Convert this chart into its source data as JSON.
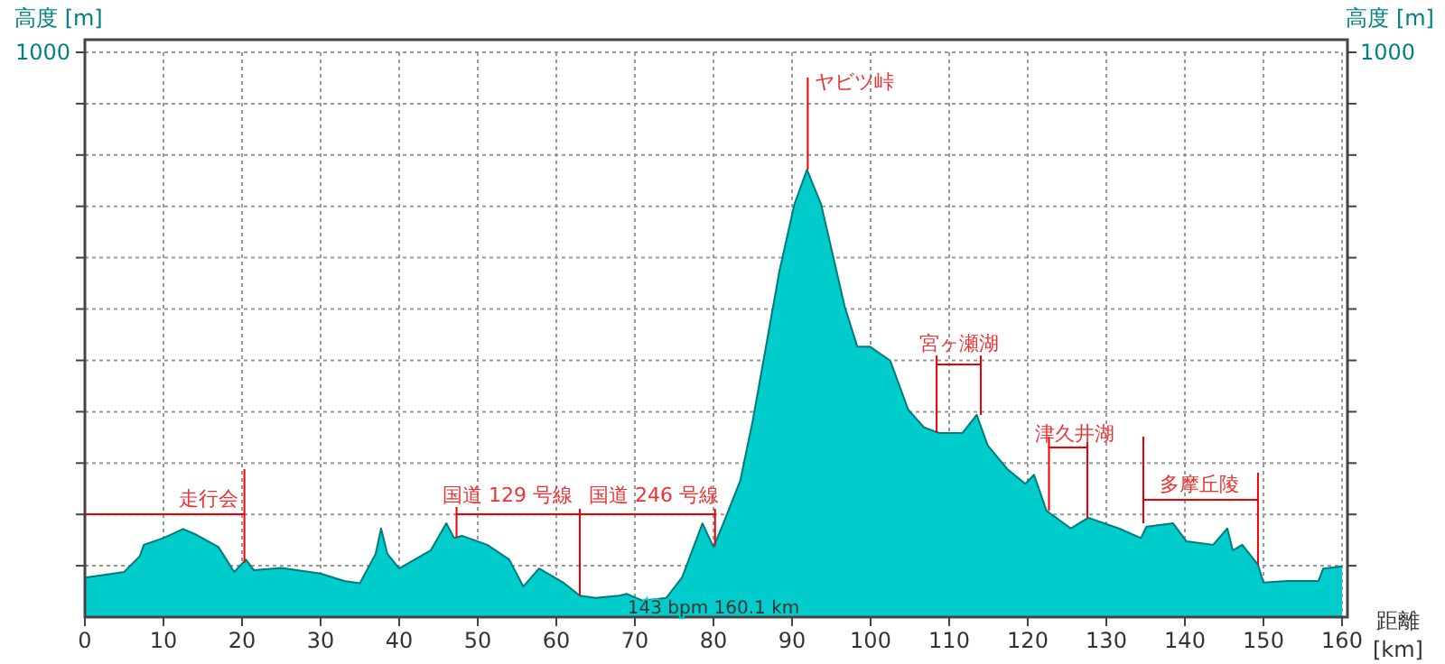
{
  "chart_data": {
    "type": "area",
    "ylabel": "高度 [m]",
    "y2label": "高度 [m]",
    "xlabel": "距離 [km]",
    "x": [
      0,
      5,
      7,
      7.5,
      10,
      12.5,
      14,
      17,
      19,
      19.5,
      20.5,
      21.5,
      25,
      30,
      33,
      35,
      37,
      37.7,
      38.5,
      40,
      44,
      46,
      47,
      48,
      51.2,
      54,
      55.8,
      57.8,
      61,
      63,
      65,
      68,
      69,
      71,
      74,
      76,
      78.6,
      80,
      81,
      83.4,
      85,
      88.4,
      90.3,
      91.9,
      93.7,
      96.7,
      98.3,
      99.9,
      102.5,
      104.8,
      106.8,
      108.7,
      111.7,
      113.5,
      114.9,
      117.4,
      119.7,
      120.8,
      122.4,
      125.5,
      127.7,
      131.6,
      134.4,
      135.1,
      138.5,
      140.2,
      143.6,
      145.4,
      146.1,
      147.3,
      149.3,
      150,
      153,
      157,
      157.6,
      160
    ],
    "series": [
      {
        "color": "#00cccc",
        "values": [
          70,
          80,
          108,
          128,
          140,
          156,
          147,
          124,
          80,
          87,
          102,
          83,
          87,
          77,
          64,
          60,
          112,
          157,
          112,
          86,
          118,
          166,
          140,
          144,
          128,
          102,
          54,
          86,
          60,
          38,
          34,
          38,
          41,
          29,
          34,
          70,
          166,
          124,
          157,
          241,
          348,
          613,
          731,
          792,
          731,
          550,
          479,
          479,
          454,
          367,
          336,
          326,
          326,
          358,
          304,
          262,
          236,
          252,
          188,
          157,
          176,
          157,
          140,
          160,
          166,
          134,
          128,
          157,
          118,
          128,
          93,
          61,
          64,
          64,
          86,
          90
        ]
      }
    ],
    "xlim": [
      0,
      160
    ],
    "xticks": [
      0,
      10,
      20,
      30,
      40,
      50,
      60,
      70,
      80,
      90,
      100,
      110,
      120,
      130,
      140,
      150,
      160
    ],
    "ylim": [
      0,
      1000
    ],
    "yticks": [
      {
        "value": 90.9,
        "label": null
      },
      {
        "value": 181.8,
        "label": null
      },
      {
        "value": 272.7,
        "label": null
      },
      {
        "value": 363.6,
        "label": null
      },
      {
        "value": 454.5,
        "label": null
      },
      {
        "value": 545.5,
        "label": null
      },
      {
        "value": 636.4,
        "label": null
      },
      {
        "value": 727.3,
        "label": null
      },
      {
        "value": 818.2,
        "label": null
      },
      {
        "value": 909.1,
        "label": null
      },
      1000
    ],
    "grid": true,
    "line_style": "solid",
    "marker": "none",
    "annotations": [
      {
        "text": "走行会",
        "x": 20.3,
        "y": 96
      },
      {
        "text": "国道 129 号線",
        "x": 47.3,
        "y": 140
      },
      {
        "text": "国道 246 号線",
        "x": 80.2,
        "y": 126
      },
      {
        "text": "ヤビツ峠",
        "x": 92,
        "y": 792
      },
      {
        "text": "宮ヶ瀬湖",
        "x": 108.4,
        "y": 326
      },
      {
        "text": "津久井湖",
        "x": 122.7,
        "y": 188
      },
      {
        "text": "多摩丘陵",
        "x": 149.3,
        "y": 93
      },
      "143 bpm 160.1 km",
      "1000"
    ]
  }
}
